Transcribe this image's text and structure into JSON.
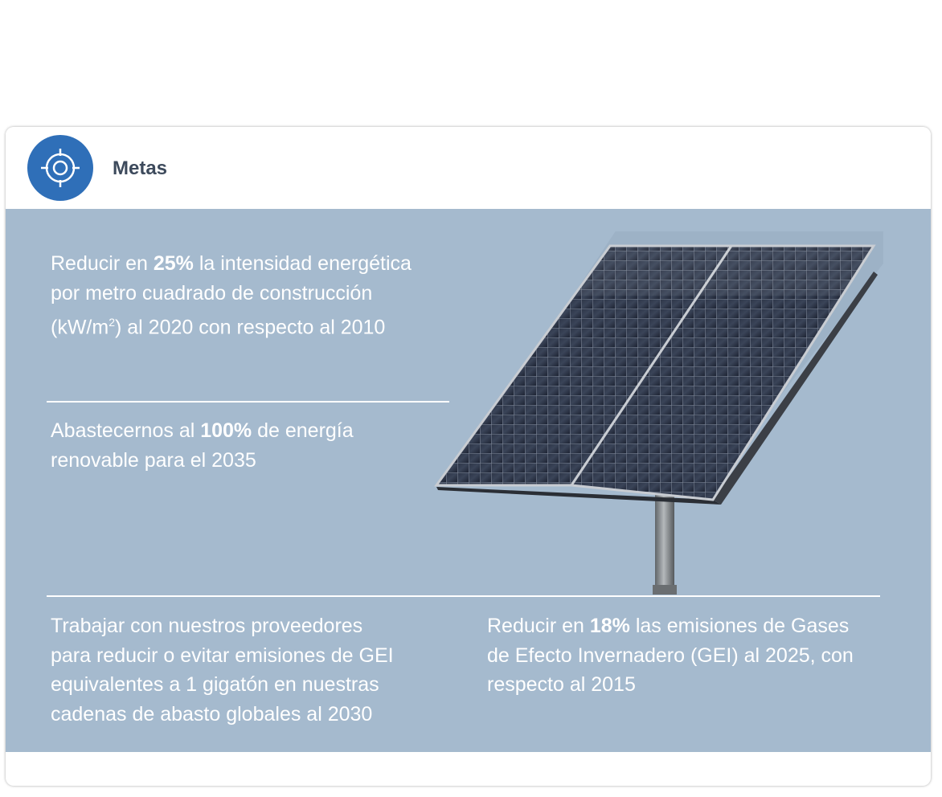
{
  "header": {
    "title": "Metas",
    "icon": "target-icon",
    "icon_color": "#2f6fb8"
  },
  "panel_color": "#a5bace",
  "goals": [
    {
      "prefix": "Reducir en ",
      "highlight": "25%",
      "suffix_line1": " la intensidad energética",
      "line2": "por metro cuadrado de construcción",
      "line3_a": "(kW/m",
      "line3_sup": "2",
      "line3_b": ") al 2020 con respecto al 2010"
    },
    {
      "prefix": "Abastecernos al ",
      "highlight": "100%",
      "suffix_line1": " de energía",
      "line2": "renovable para el 2035"
    },
    {
      "line1": "Trabajar con nuestros proveedores",
      "line2": "para reducir o evitar emisiones de GEI",
      "line3": "equivalentes a 1 gigatón en nuestras",
      "line4": "cadenas de abasto globales al 2030"
    },
    {
      "prefix": "Reducir en ",
      "highlight": "18%",
      "suffix_line1": " las emisiones de Gases",
      "line2": "de Efecto Invernadero (GEI) al 2025, con",
      "line3": "respecto al 2015"
    }
  ],
  "image": "solar-panel-photo"
}
